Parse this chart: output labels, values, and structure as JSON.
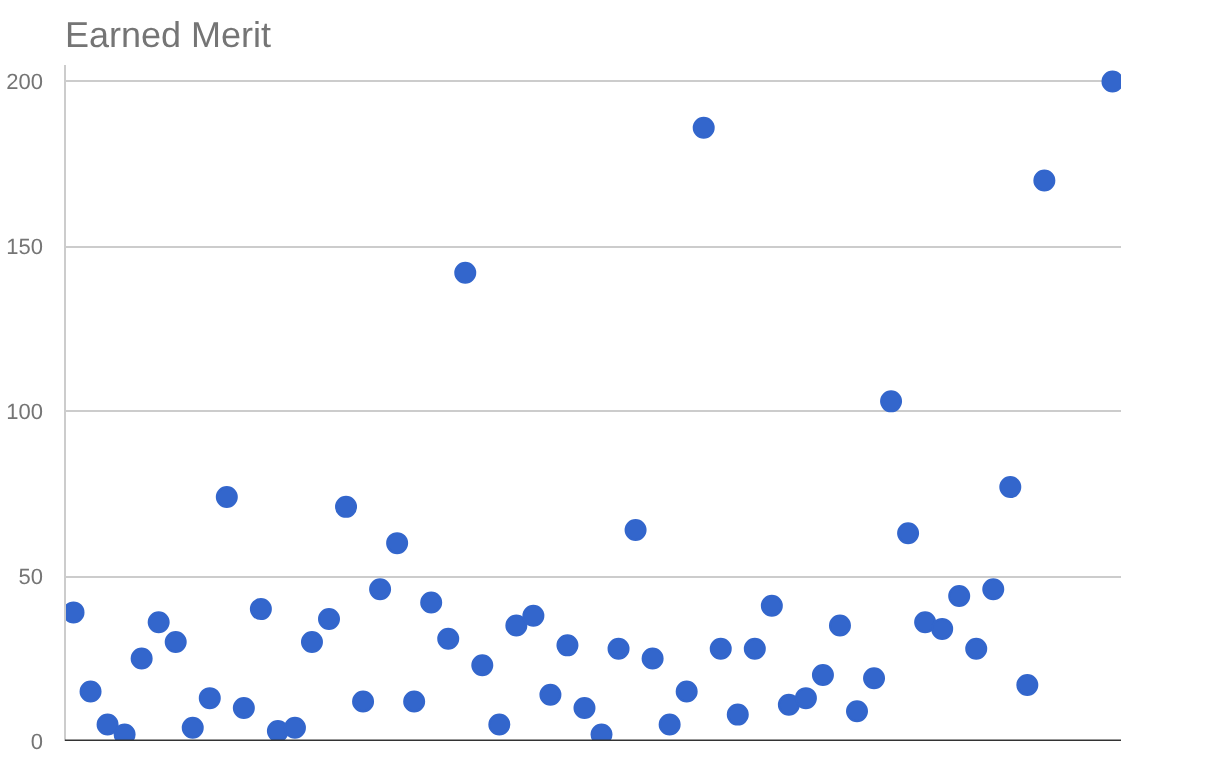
{
  "chart_data": {
    "type": "scatter",
    "title": "Earned Merit",
    "categories": [
      null,
      null,
      null,
      null,
      null,
      null,
      null,
      null,
      null,
      null,
      null,
      null,
      null,
      null,
      null,
      null,
      null,
      null,
      null,
      null,
      null,
      null,
      null,
      null,
      null,
      null,
      null,
      null,
      null,
      null,
      null,
      null,
      null,
      null,
      null,
      null,
      null,
      null,
      null,
      null,
      null,
      null,
      null,
      null,
      null,
      null,
      null,
      null,
      null,
      null,
      null,
      null,
      null,
      null,
      null,
      null,
      null,
      null,
      null,
      null,
      null,
      null
    ],
    "series": [
      {
        "color": "#3366cc",
        "values": [
          39,
          15,
          5,
          2,
          25,
          36,
          30,
          4,
          13,
          74,
          10,
          40,
          3,
          4,
          30,
          37,
          71,
          12,
          46,
          60,
          12,
          42,
          31,
          142,
          23,
          5,
          35,
          38,
          14,
          29,
          10,
          2,
          28,
          64,
          25,
          5,
          15,
          186,
          28,
          8,
          28,
          41,
          11,
          13,
          20,
          35,
          9,
          19,
          103,
          63,
          36,
          34,
          44,
          28,
          46,
          77,
          17,
          170,
          null,
          null,
          null,
          200
        ]
      }
    ],
    "ylim": [
      0,
      205
    ],
    "yticks": [
      0,
      50,
      100,
      150,
      200
    ],
    "grid": "y",
    "tick_labels": "y",
    "marker": "circle"
  }
}
